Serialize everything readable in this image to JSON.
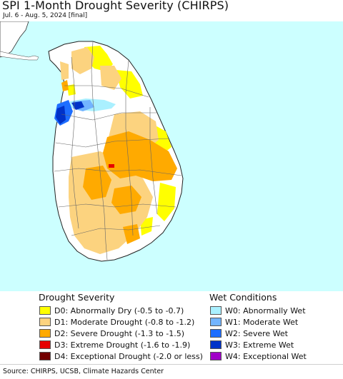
{
  "header": {
    "title": "SPI 1-Month Drought Severity (CHIRPS)",
    "subtitle": "Jul. 6 - Aug. 5, 2024 [final]"
  },
  "legend": {
    "drought_title": "Drought Severity",
    "wet_title": "Wet Conditions",
    "drought_items": [
      {
        "label": "D0: Abnormally Dry (-0.5 to -0.7)",
        "color": "#ffff00"
      },
      {
        "label": "D1: Moderate Drought (-0.8 to -1.2)",
        "color": "#fcd37f"
      },
      {
        "label": "D2: Severe Drought (-1.3 to -1.5)",
        "color": "#ffaa00"
      },
      {
        "label": "D3: Extreme Drought (-1.6 to -1.9)",
        "color": "#e60000"
      },
      {
        "label": "D4: Exceptional Drought (-2.0 or less)",
        "color": "#730000"
      }
    ],
    "wet_items": [
      {
        "label": "W0: Abnormally Wet",
        "color": "#aaf0ff"
      },
      {
        "label": "W1: Moderate Wet",
        "color": "#72b4ff"
      },
      {
        "label": "W2: Severe Wet",
        "color": "#1e6eff"
      },
      {
        "label": "W3: Extreme Wet",
        "color": "#0032c8"
      },
      {
        "label": "W4: Exceptional Wet",
        "color": "#a000c8"
      }
    ]
  },
  "footer": {
    "source": "Source: CHIRPS, UCSB, Climate Hazards Center"
  },
  "map": {
    "ocean_color": "#ccffff",
    "land_color": "#ffffff",
    "region": "Sri Lanka"
  }
}
